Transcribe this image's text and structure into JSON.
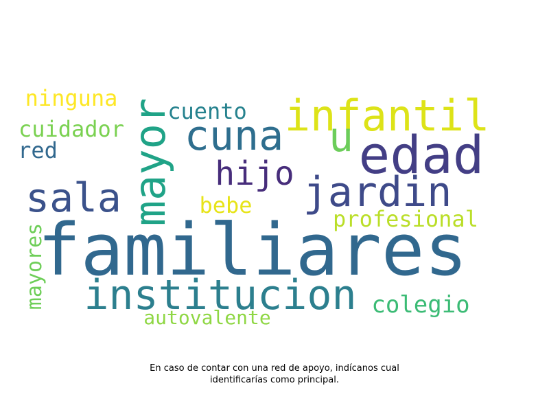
{
  "words": [
    {
      "text": "familiares",
      "color": "#31688e"
    },
    {
      "text": "institucion",
      "color": "#2c7f8e"
    },
    {
      "text": "edad",
      "color": "#433e85"
    },
    {
      "text": "mayor",
      "color": "#20a387"
    },
    {
      "text": "infantil",
      "color": "#dde318"
    },
    {
      "text": "jardin",
      "color": "#3e4a89"
    },
    {
      "text": "cuna",
      "color": "#2e6e8e"
    },
    {
      "text": "sala",
      "color": "#3b528b"
    },
    {
      "text": "hijo",
      "color": "#472d7b"
    },
    {
      "text": "u",
      "color": "#6ccd5a"
    },
    {
      "text": "colegio",
      "color": "#3bbb75"
    },
    {
      "text": "profesional",
      "color": "#bade28"
    },
    {
      "text": "autovalente",
      "color": "#8fd744"
    },
    {
      "text": "cuento",
      "color": "#26828e"
    },
    {
      "text": "cuidador",
      "color": "#7ad151"
    },
    {
      "text": "ninguna",
      "color": "#fde725"
    },
    {
      "text": "bebe",
      "color": "#e7e419"
    },
    {
      "text": "red",
      "color": "#31688e"
    },
    {
      "text": "mayores",
      "color": "#6ece58"
    }
  ],
  "caption": {
    "line1": "En caso de contar con una red de apoyo, indícanos cual",
    "line2": "identificarías como principal."
  }
}
